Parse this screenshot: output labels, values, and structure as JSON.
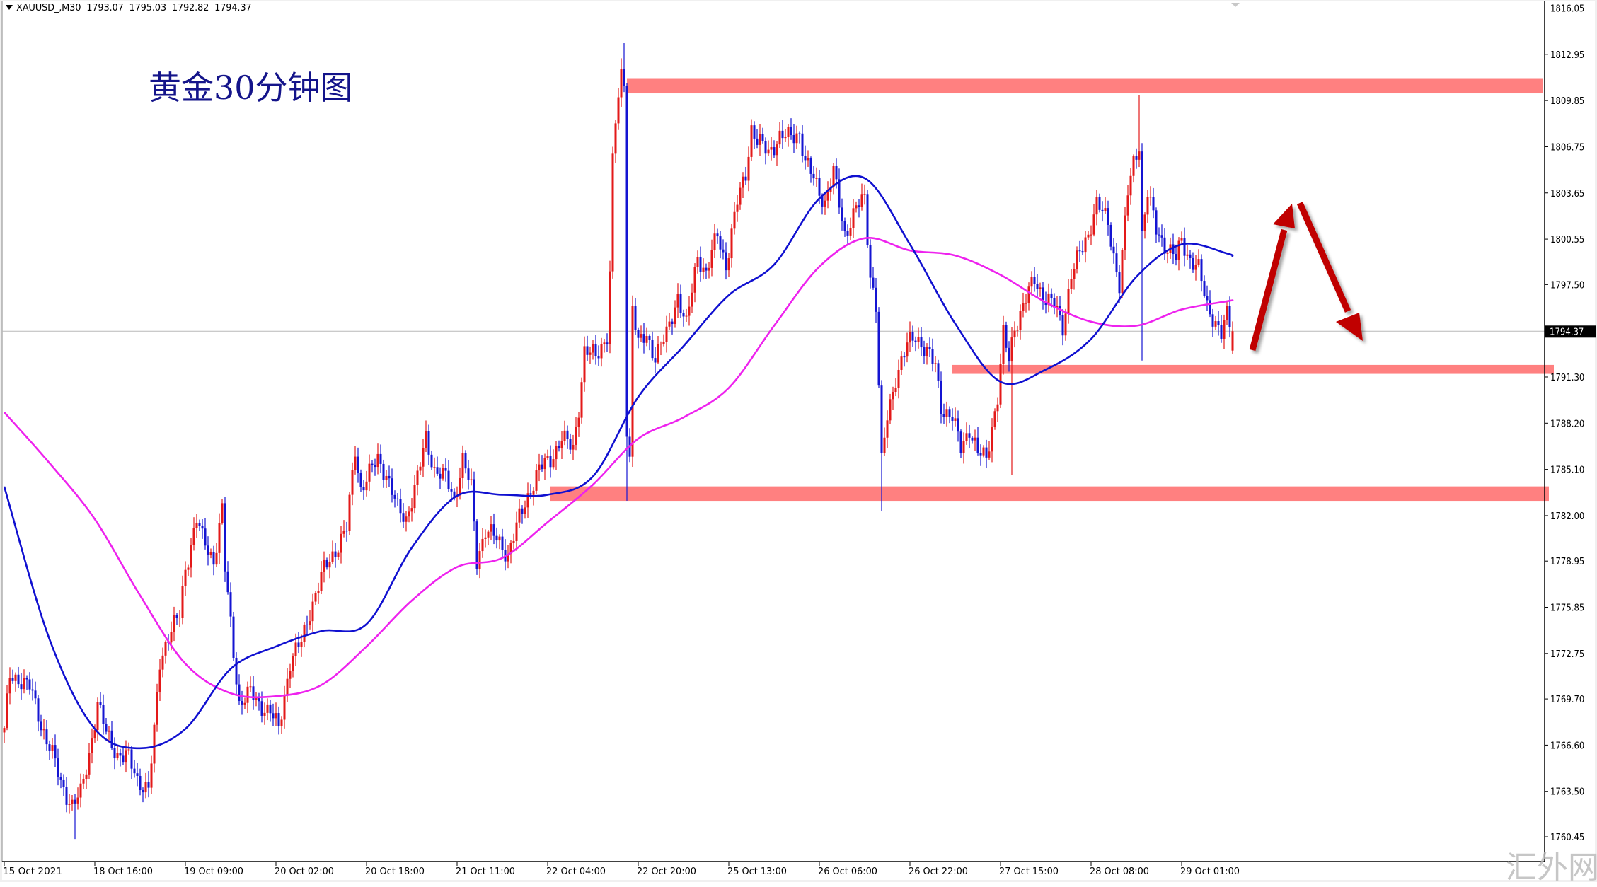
{
  "header": {
    "symbol": "XAUUSD_,M30",
    "open": "1793.07",
    "high": "1795.03",
    "low": "1792.82",
    "close": "1794.37"
  },
  "annotation_title": "黄金30分钟图",
  "watermark": "汇外网",
  "colors": {
    "bull_candle": "#e31919",
    "bear_candle": "#1414d2",
    "ma_fast": "#1010d0",
    "ma_slow": "#ee22ee",
    "zone": "#ff8080",
    "arrow": "#c00000",
    "price_label_bg": "#000000"
  },
  "chart_data": {
    "type": "candlestick",
    "timeframe": "M30",
    "ylim": [
      1760.45,
      1816.05
    ],
    "y_ticks": [
      "1816.05",
      "1812.95",
      "1809.85",
      "1806.75",
      "1803.65",
      "1800.55",
      "1797.50",
      "1794.37",
      "1791.30",
      "1788.20",
      "1785.10",
      "1782.00",
      "1778.95",
      "1775.85",
      "1772.75",
      "1769.70",
      "1766.60",
      "1763.50",
      "1760.45"
    ],
    "current_price": "1794.37",
    "x_ticks": [
      "15 Oct 2021",
      "18 Oct 16:00",
      "19 Oct 09:00",
      "20 Oct 02:00",
      "20 Oct 18:00",
      "21 Oct 11:00",
      "22 Oct 04:00",
      "22 Oct 20:00",
      "25 Oct 13:00",
      "26 Oct 06:00",
      "26 Oct 22:00",
      "27 Oct 15:00",
      "28 Oct 08:00",
      "29 Oct 01:00"
    ],
    "close_path": [
      [
        "15 Oct 23:00",
        1767.5
      ],
      [
        "18 Oct 01:00",
        1771.2
      ],
      [
        "18 Oct 03:00",
        1771.0
      ],
      [
        "18 Oct 04:30",
        1770.5
      ],
      [
        "18 Oct 06:30",
        1768.0
      ],
      [
        "18 Oct 08:30",
        1766.0
      ],
      [
        "18 Oct 10:00",
        1764.0
      ],
      [
        "18 Oct 12:00",
        1762.6
      ],
      [
        "18 Oct 13:30",
        1763.3
      ],
      [
        "18 Oct 15:00",
        1766.0
      ],
      [
        "18 Oct 16:30",
        1769.4
      ],
      [
        "18 Oct 18:00",
        1767.4
      ],
      [
        "18 Oct 20:00",
        1766.0
      ],
      [
        "18 Oct 22:00",
        1765.7
      ],
      [
        "18 Oct 23:30",
        1764.3
      ],
      [
        "19 Oct 02:30",
        1763.6
      ],
      [
        "19 Oct 03:30",
        1767.4
      ],
      [
        "19 Oct 04:30",
        1772.2
      ],
      [
        "19 Oct 06:00",
        1774.0
      ],
      [
        "19 Oct 08:00",
        1775.3
      ],
      [
        "19 Oct 09:00",
        1778.4
      ],
      [
        "19 Oct 11:00",
        1781.8
      ],
      [
        "19 Oct 12:00",
        1780.4
      ],
      [
        "19 Oct 14:00",
        1779.0
      ],
      [
        "19 Oct 15:30",
        1782.4
      ],
      [
        "19 Oct 16:00",
        1778.4
      ],
      [
        "19 Oct 17:30",
        1772.9
      ],
      [
        "19 Oct 18:30",
        1769.4
      ],
      [
        "19 Oct 20:30",
        1770.1
      ],
      [
        "19 Oct 22:00",
        1769.4
      ],
      [
        "20 Oct 01:00",
        1768.8
      ],
      [
        "20 Oct 02:30",
        1767.7
      ],
      [
        "20 Oct 04:30",
        1772.2
      ],
      [
        "20 Oct 06:30",
        1773.5
      ],
      [
        "20 Oct 08:00",
        1775.6
      ],
      [
        "20 Oct 10:30",
        1778.4
      ],
      [
        "20 Oct 12:30",
        1779.7
      ],
      [
        "20 Oct 14:30",
        1781.1
      ],
      [
        "20 Oct 16:00",
        1786.5
      ],
      [
        "20 Oct 17:00",
        1783.8
      ],
      [
        "20 Oct 20:00",
        1785.8
      ],
      [
        "20 Oct 21:30",
        1784.8
      ],
      [
        "20 Oct 23:30",
        1782.4
      ],
      [
        "21 Oct 02:00",
        1781.8
      ],
      [
        "21 Oct 04:00",
        1784.5
      ],
      [
        "21 Oct 05:30",
        1787.2
      ],
      [
        "21 Oct 07:00",
        1785.1
      ],
      [
        "21 Oct 09:00",
        1784.5
      ],
      [
        "21 Oct 10:30",
        1783.1
      ],
      [
        "21 Oct 12:00",
        1785.8
      ],
      [
        "21 Oct 13:30",
        1783.8
      ],
      [
        "21 Oct 14:30",
        1779.0
      ],
      [
        "21 Oct 16:00",
        1781.1
      ],
      [
        "21 Oct 18:00",
        1780.4
      ],
      [
        "21 Oct 20:00",
        1779.4
      ],
      [
        "21 Oct 22:00",
        1781.8
      ],
      [
        "22 Oct 01:00",
        1783.8
      ],
      [
        "22 Oct 02:30",
        1785.1
      ],
      [
        "22 Oct 04:30",
        1785.8
      ],
      [
        "22 Oct 06:30",
        1787.2
      ],
      [
        "22 Oct 08:30",
        1786.5
      ],
      [
        "22 Oct 09:30",
        1789.3
      ],
      [
        "22 Oct 10:30",
        1793.0
      ],
      [
        "22 Oct 12:30",
        1792.7
      ],
      [
        "22 Oct 14:30",
        1794.1
      ],
      [
        "22 Oct 15:00",
        1798.2
      ],
      [
        "22 Oct 15:30",
        1805.7
      ],
      [
        "22 Oct 16:00",
        1808.4
      ],
      [
        "22 Oct 17:00",
        1811.5
      ],
      [
        "22 Oct 17:30",
        1811.2
      ],
      [
        "22 Oct 18:00",
        1787.9
      ],
      [
        "22 Oct 18:30",
        1785.8
      ],
      [
        "22 Oct 19:00",
        1796.1
      ],
      [
        "22 Oct 20:00",
        1793.4
      ],
      [
        "22 Oct 21:30",
        1794.1
      ],
      [
        "22 Oct 23:00",
        1792.7
      ],
      [
        "25 Oct 02:00",
        1794.1
      ],
      [
        "25 Oct 04:00",
        1796.8
      ],
      [
        "25 Oct 05:30",
        1794.7
      ],
      [
        "25 Oct 07:30",
        1799.5
      ],
      [
        "25 Oct 09:00",
        1798.2
      ],
      [
        "25 Oct 11:00",
        1800.9
      ],
      [
        "25 Oct 12:30",
        1798.8
      ],
      [
        "25 Oct 13:30",
        1800.9
      ],
      [
        "25 Oct 14:30",
        1803.0
      ],
      [
        "25 Oct 16:00",
        1805.0
      ],
      [
        "25 Oct 17:00",
        1808.0
      ],
      [
        "25 Oct 18:00",
        1807.1
      ],
      [
        "25 Oct 20:00",
        1806.4
      ],
      [
        "25 Oct 22:00",
        1807.4
      ],
      [
        "25 Oct 23:30",
        1807.4
      ],
      [
        "26 Oct 02:30",
        1807.7
      ],
      [
        "26 Oct 03:30",
        1805.7
      ],
      [
        "26 Oct 05:00",
        1804.6
      ],
      [
        "26 Oct 07:00",
        1803.0
      ],
      [
        "26 Oct 08:30",
        1805.0
      ],
      [
        "26 Oct 10:30",
        1800.9
      ],
      [
        "26 Oct 12:30",
        1802.6
      ],
      [
        "26 Oct 14:00",
        1803.3
      ],
      [
        "26 Oct 15:00",
        1798.2
      ],
      [
        "26 Oct 16:00",
        1796.1
      ],
      [
        "26 Oct 17:00",
        1785.5
      ],
      [
        "26 Oct 18:00",
        1788.6
      ],
      [
        "26 Oct 19:30",
        1791.3
      ],
      [
        "26 Oct 21:30",
        1793.4
      ],
      [
        "26 Oct 23:00",
        1794.1
      ],
      [
        "27 Oct 02:00",
        1793.0
      ],
      [
        "27 Oct 03:30",
        1792.0
      ],
      [
        "27 Oct 04:30",
        1789.3
      ],
      [
        "27 Oct 06:30",
        1788.6
      ],
      [
        "27 Oct 08:00",
        1786.5
      ],
      [
        "27 Oct 09:30",
        1787.9
      ],
      [
        "27 Oct 11:00",
        1786.2
      ],
      [
        "27 Oct 12:30",
        1785.8
      ],
      [
        "27 Oct 13:30",
        1788.0
      ],
      [
        "27 Oct 14:30",
        1790.0
      ],
      [
        "27 Oct 15:30",
        1794.1
      ],
      [
        "27 Oct 16:30",
        1792.4
      ],
      [
        "27 Oct 17:30",
        1794.7
      ],
      [
        "27 Oct 19:00",
        1796.1
      ],
      [
        "27 Oct 21:00",
        1797.8
      ],
      [
        "27 Oct 22:30",
        1796.8
      ],
      [
        "28 Oct 01:30",
        1796.1
      ],
      [
        "28 Oct 03:00",
        1794.7
      ],
      [
        "28 Oct 04:30",
        1798.2
      ],
      [
        "28 Oct 06:00",
        1799.5
      ],
      [
        "28 Oct 07:30",
        1800.9
      ],
      [
        "28 Oct 09:00",
        1803.0
      ],
      [
        "28 Oct 11:00",
        1801.6
      ],
      [
        "28 Oct 12:00",
        1799.5
      ],
      [
        "28 Oct 13:00",
        1797.5
      ],
      [
        "28 Oct 14:30",
        1803.6
      ],
      [
        "28 Oct 15:30",
        1805.7
      ],
      [
        "28 Oct 16:30",
        1807.0
      ],
      [
        "28 Oct 17:00",
        1800.9
      ],
      [
        "28 Oct 18:00",
        1803.6
      ],
      [
        "28 Oct 19:30",
        1801.2
      ],
      [
        "28 Oct 21:00",
        1800.2
      ],
      [
        "28 Oct 23:00",
        1799.2
      ],
      [
        "29 Oct 01:00",
        1800.5
      ],
      [
        "29 Oct 02:30",
        1799.2
      ],
      [
        "29 Oct 04:00",
        1798.5
      ],
      [
        "29 Oct 05:30",
        1796.1
      ],
      [
        "29 Oct 06:30",
        1795.4
      ],
      [
        "29 Oct 08:00",
        1794.1
      ],
      [
        "29 Oct 09:00",
        1795.4
      ],
      [
        "29 Oct 10:00",
        1794.37
      ]
    ],
    "extremes": [
      [
        "18 Oct 12:30",
        "low",
        1760.3
      ],
      [
        "22 Oct 17:30",
        "high",
        1813.7
      ],
      [
        "22 Oct 18:00",
        "low",
        1783.0
      ],
      [
        "26 Oct 17:00",
        "low",
        1782.3
      ],
      [
        "27 Oct 17:00",
        "low",
        1784.7
      ],
      [
        "28 Oct 16:30",
        "high",
        1810.2
      ],
      [
        "28 Oct 17:00",
        "low",
        1792.4
      ]
    ],
    "ma_fast": [
      [
        "15 Oct 23:00",
        1783.95
      ],
      [
        "18 Oct 08:00",
        1773.7
      ],
      [
        "18 Oct 16:00",
        1767.69
      ],
      [
        "19 Oct 01:00",
        1766.39
      ],
      [
        "19 Oct 09:00",
        1767.69
      ],
      [
        "19 Oct 17:00",
        1771.72
      ],
      [
        "20 Oct 02:00",
        1773.22
      ],
      [
        "20 Oct 10:00",
        1774.25
      ],
      [
        "20 Oct 18:00",
        1774.72
      ],
      [
        "21 Oct 03:00",
        1779.85
      ],
      [
        "21 Oct 11:00",
        1783.33
      ],
      [
        "21 Oct 19:00",
        1783.4
      ],
      [
        "22 Oct 04:00",
        1783.4
      ],
      [
        "22 Oct 12:00",
        1784.63
      ],
      [
        "22 Oct 20:00",
        1789.96
      ],
      [
        "25 Oct 05:00",
        1793.37
      ],
      [
        "25 Oct 13:00",
        1796.79
      ],
      [
        "25 Oct 21:00",
        1798.84
      ],
      [
        "26 Oct 06:00",
        1803.28
      ],
      [
        "26 Oct 14:00",
        1804.64
      ],
      [
        "26 Oct 22:00",
        1800.2
      ],
      [
        "27 Oct 07:00",
        1794.88
      ],
      [
        "27 Oct 15:00",
        1790.98
      ],
      [
        "27 Oct 23:00",
        1791.8
      ],
      [
        "28 Oct 08:00",
        1793.85
      ],
      [
        "28 Oct 16:00",
        1798.02
      ],
      [
        "29 Oct 01:00",
        1800.2
      ],
      [
        "29 Oct 09:00",
        1799.59
      ],
      [
        "29 Oct 10:00",
        1799.38
      ]
    ],
    "ma_slow": [
      [
        "15 Oct 23:00",
        1788.93
      ],
      [
        "18 Oct 08:00",
        1785.52
      ],
      [
        "18 Oct 16:00",
        1781.76
      ],
      [
        "19 Oct 01:00",
        1776.64
      ],
      [
        "19 Oct 09:00",
        1772.06
      ],
      [
        "19 Oct 17:00",
        1770.08
      ],
      [
        "20 Oct 02:00",
        1769.88
      ],
      [
        "20 Oct 10:00",
        1770.63
      ],
      [
        "20 Oct 18:00",
        1773.22
      ],
      [
        "21 Oct 03:00",
        1776.3
      ],
      [
        "21 Oct 11:00",
        1778.55
      ],
      [
        "21 Oct 19:00",
        1779.16
      ],
      [
        "22 Oct 04:00",
        1781.56
      ],
      [
        "22 Oct 12:00",
        1784.08
      ],
      [
        "22 Oct 20:00",
        1787.16
      ],
      [
        "25 Oct 05:00",
        1788.59
      ],
      [
        "25 Oct 13:00",
        1790.57
      ],
      [
        "25 Oct 21:00",
        1794.74
      ],
      [
        "26 Oct 06:00",
        1798.7
      ],
      [
        "26 Oct 14:00",
        1800.61
      ],
      [
        "26 Oct 22:00",
        1799.79
      ],
      [
        "27 Oct 07:00",
        1799.45
      ],
      [
        "27 Oct 15:00",
        1798.15
      ],
      [
        "27 Oct 23:00",
        1796.31
      ],
      [
        "28 Oct 08:00",
        1795.01
      ],
      [
        "28 Oct 16:00",
        1794.74
      ],
      [
        "29 Oct 01:00",
        1795.83
      ],
      [
        "29 Oct 09:00",
        1796.38
      ],
      [
        "29 Oct 10:00",
        1796.45
      ]
    ],
    "zones": [
      {
        "from": "22 Oct 18:00",
        "top": 1811.35,
        "bottom": 1810.33
      },
      {
        "from": "27 Oct 06:30",
        "top": 1792.11,
        "bottom": 1791.51
      },
      {
        "from": "22 Oct 04:30",
        "top": 1783.96,
        "bottom": 1782.99
      }
    ],
    "forecast_arrows": [
      "up",
      "down"
    ]
  }
}
